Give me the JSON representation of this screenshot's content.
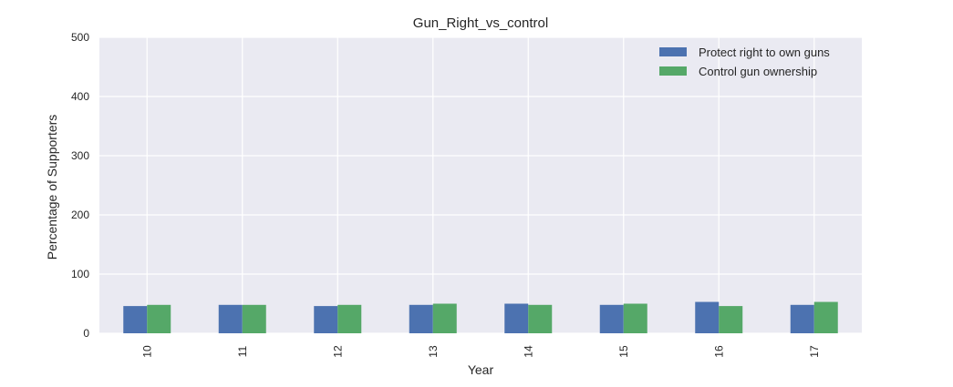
{
  "chart_data": {
    "type": "bar",
    "title": "Gun_Right_vs_control",
    "xlabel": "Year",
    "ylabel": "Percentage of Supporters",
    "categories": [
      "10",
      "11",
      "12",
      "13",
      "14",
      "15",
      "16",
      "17"
    ],
    "series": [
      {
        "name": "Protect right to own guns",
        "values": [
          46,
          48,
          46,
          48,
          50,
          48,
          53,
          48
        ],
        "color": "#4c72b0"
      },
      {
        "name": "Control gun ownership",
        "values": [
          48,
          48,
          48,
          50,
          48,
          50,
          46,
          53
        ],
        "color": "#55a868"
      }
    ],
    "ylim": [
      0,
      500
    ],
    "yticks": [
      0,
      100,
      200,
      300,
      400,
      500
    ],
    "grid": true,
    "legend_position": "top-right",
    "style": {
      "plot_background": "#eaeaf2",
      "grid_color": "#ffffff"
    }
  }
}
